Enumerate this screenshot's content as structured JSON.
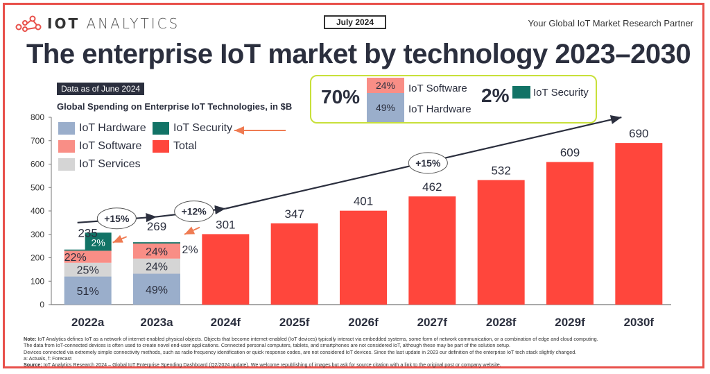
{
  "header": {
    "logo_bold": "IOT",
    "logo_light": "ANALYTICS",
    "date_badge": "July 2024",
    "tagline": "Your Global IoT Market Research Partner",
    "title": "The enterprise IoT market by technology 2023–2030",
    "data_as_of": "Data as of June 2024"
  },
  "callout": {
    "combined_share": "70%",
    "software_share": "24%",
    "software_label": "IoT Software",
    "hardware_share": "49%",
    "hardware_label": "IoT Hardware",
    "security_share": "2%",
    "security_label": "IoT Security"
  },
  "colors": {
    "hardware": "#9aaecb",
    "software": "#f98e86",
    "services": "#d5d5d5",
    "security": "#127366",
    "total": "#ff463c",
    "frame": "#e8504a",
    "callout_border": "#c8e03a",
    "arrow_orange": "#ef7b52",
    "text_dark": "#2b2f3e"
  },
  "chart_data": {
    "type": "bar",
    "title": "Global Spending on Enterprise IoT Technologies, in $B",
    "xlabel": "",
    "ylabel": "",
    "ylim": [
      0,
      800
    ],
    "yticks": [
      0,
      100,
      200,
      300,
      400,
      500,
      600,
      700,
      800
    ],
    "grid": false,
    "legend_position": "top-left",
    "legend": [
      "IoT Hardware",
      "IoT Security",
      "IoT Software",
      "Total",
      "IoT Services"
    ],
    "categories": [
      "2022a",
      "2023a",
      "2024f",
      "2025f",
      "2026f",
      "2027f",
      "2028f",
      "2029f",
      "2030f"
    ],
    "totals": [
      235,
      269,
      301,
      347,
      401,
      462,
      532,
      609,
      690
    ],
    "stacked_breakdown": [
      {
        "category": "2022a",
        "shares_pct": {
          "IoT Hardware": 51,
          "IoT Services": 25,
          "IoT Software": 22,
          "IoT Security": 2
        }
      },
      {
        "category": "2023a",
        "shares_pct": {
          "IoT Hardware": 49,
          "IoT Services": 24,
          "IoT Software": 24,
          "IoT Security": 2
        }
      }
    ],
    "annotations": [
      {
        "text": "+15%",
        "from": "2022a",
        "to": "2023a"
      },
      {
        "text": "+12%",
        "from": "2023a",
        "to": "2024f"
      },
      {
        "text": "+15%",
        "from": "2024f",
        "to": "2030f",
        "note": "CAGR"
      }
    ]
  },
  "footer": {
    "note_label": "Note:",
    "note_line1": " IoT Analytics defines IoT as a network of internet-enabled physical objects. Objects that become internet-enabled (IoT devices) typically interact via embedded systems, some form of network communication, or a combination of edge and cloud computing.",
    "note_line2": "The data from IoT-connected devices is often used to create novel end-user applications. Connected personal computers, tablets, and smartphones are not considered IoT, although these may be part of the solution setup.",
    "note_line3": "Devices connected via extremely simple connectivity methods, such as radio frequency identification or quick response codes, are not considered IoT devices. Since the last update in 2023 our definition of the enterprise IoT tech stack slightly changed.",
    "note_line4": "a: Actuals, f: Forecast",
    "source_label": "Source:",
    "source_text": " IoT Analytics Research 2024 – Global IoT Enterprise Spending Dashboard (Q2/2024 update). We welcome republishing of images but ask for source citation with a link to the original post or company website."
  }
}
